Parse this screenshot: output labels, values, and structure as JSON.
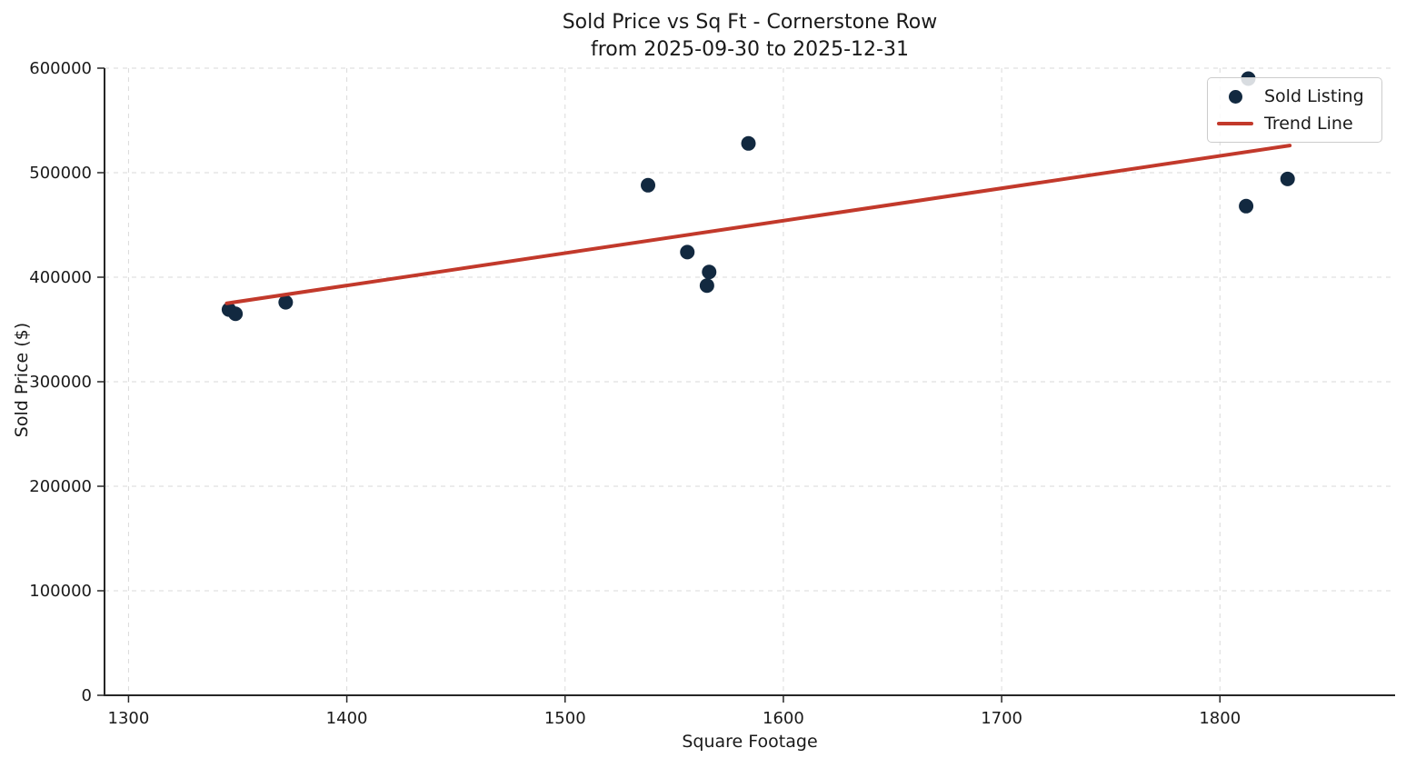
{
  "chart_data": {
    "type": "scatter",
    "title": "Sold Price vs Sq Ft - Cornerstone Row",
    "subtitle": "from 2025-09-30 to 2025-12-31",
    "xlabel": "Square Footage",
    "ylabel": "Sold Price ($)",
    "xlim": [
      1289,
      1879
    ],
    "ylim": [
      0,
      600000
    ],
    "xticks": [
      1300,
      1400,
      1500,
      1600,
      1700,
      1800
    ],
    "yticks": [
      0,
      100000,
      200000,
      300000,
      400000,
      500000,
      600000
    ],
    "grid": true,
    "legend_position": "upper right",
    "series": [
      {
        "name": "Sold Listing",
        "kind": "scatter",
        "color": "#122940",
        "points": [
          [
            1346,
            369000
          ],
          [
            1349,
            365000
          ],
          [
            1372,
            376000
          ],
          [
            1538,
            488000
          ],
          [
            1556,
            424000
          ],
          [
            1566,
            405000
          ],
          [
            1565,
            392000
          ],
          [
            1584,
            528000
          ],
          [
            1812,
            468000
          ],
          [
            1813,
            590000
          ],
          [
            1831,
            494000
          ]
        ]
      },
      {
        "name": "Trend Line",
        "kind": "line",
        "color": "#c2392b",
        "points": [
          [
            1345,
            375000
          ],
          [
            1832,
            526000
          ]
        ]
      }
    ]
  },
  "legend": {
    "items": [
      {
        "label": "Sold Listing",
        "marker": "dot",
        "color": "#122940"
      },
      {
        "label": "Trend Line",
        "marker": "line",
        "color": "#c2392b"
      }
    ]
  },
  "style": {
    "grid_color": "#dadada",
    "spine_color": "#262626",
    "text_color": "#1a1a1a"
  }
}
